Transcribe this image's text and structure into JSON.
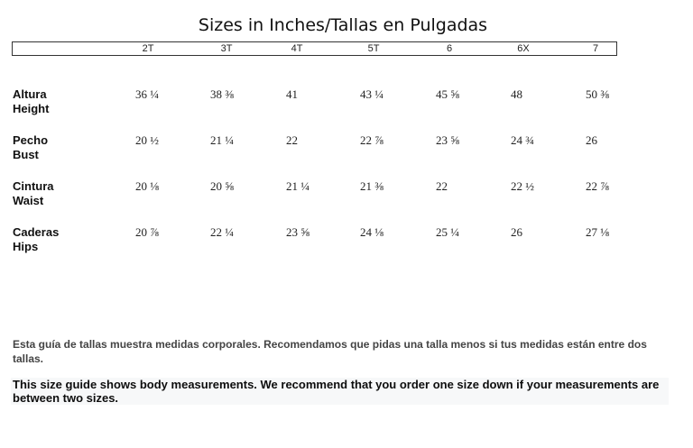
{
  "title": "Sizes in Inches/Tallas en Pulgadas",
  "sizes": [
    "2T",
    "3T",
    "4T",
    "5T",
    "6",
    "6X",
    "7"
  ],
  "rows": [
    {
      "label_es": "Altura",
      "label_en": "Height",
      "values": [
        "36 ¼",
        "38 ⅜",
        "41",
        "43 ¼",
        "45 ⅝",
        "48",
        "50 ⅜"
      ]
    },
    {
      "label_es": "Pecho",
      "label_en": "Bust",
      "values": [
        "20 ½",
        "21 ¼",
        "22",
        "22 ⅞",
        "23 ⅝",
        "24 ¾",
        "26"
      ]
    },
    {
      "label_es": "Cintura",
      "label_en": "Waist",
      "values": [
        "20 ⅛",
        "20 ⅝",
        "21 ¼",
        "21 ⅜",
        "22",
        "22 ½",
        "22 ⅞"
      ]
    },
    {
      "label_es": "Caderas",
      "label_en": "Hips",
      "values": [
        "20 ⅞",
        "22 ¼",
        "23 ⅝",
        "24 ⅛",
        "25 ¼",
        "26",
        "27 ⅛"
      ]
    }
  ],
  "note_es": "Esta guía de tallas muestra medidas corporales. Recomendamos que pidas una talla menos si tus medidas están entre dos tallas.",
  "note_en": "This size guide shows body measurements. We recommend that you order one size down if your measurements are between two sizes."
}
